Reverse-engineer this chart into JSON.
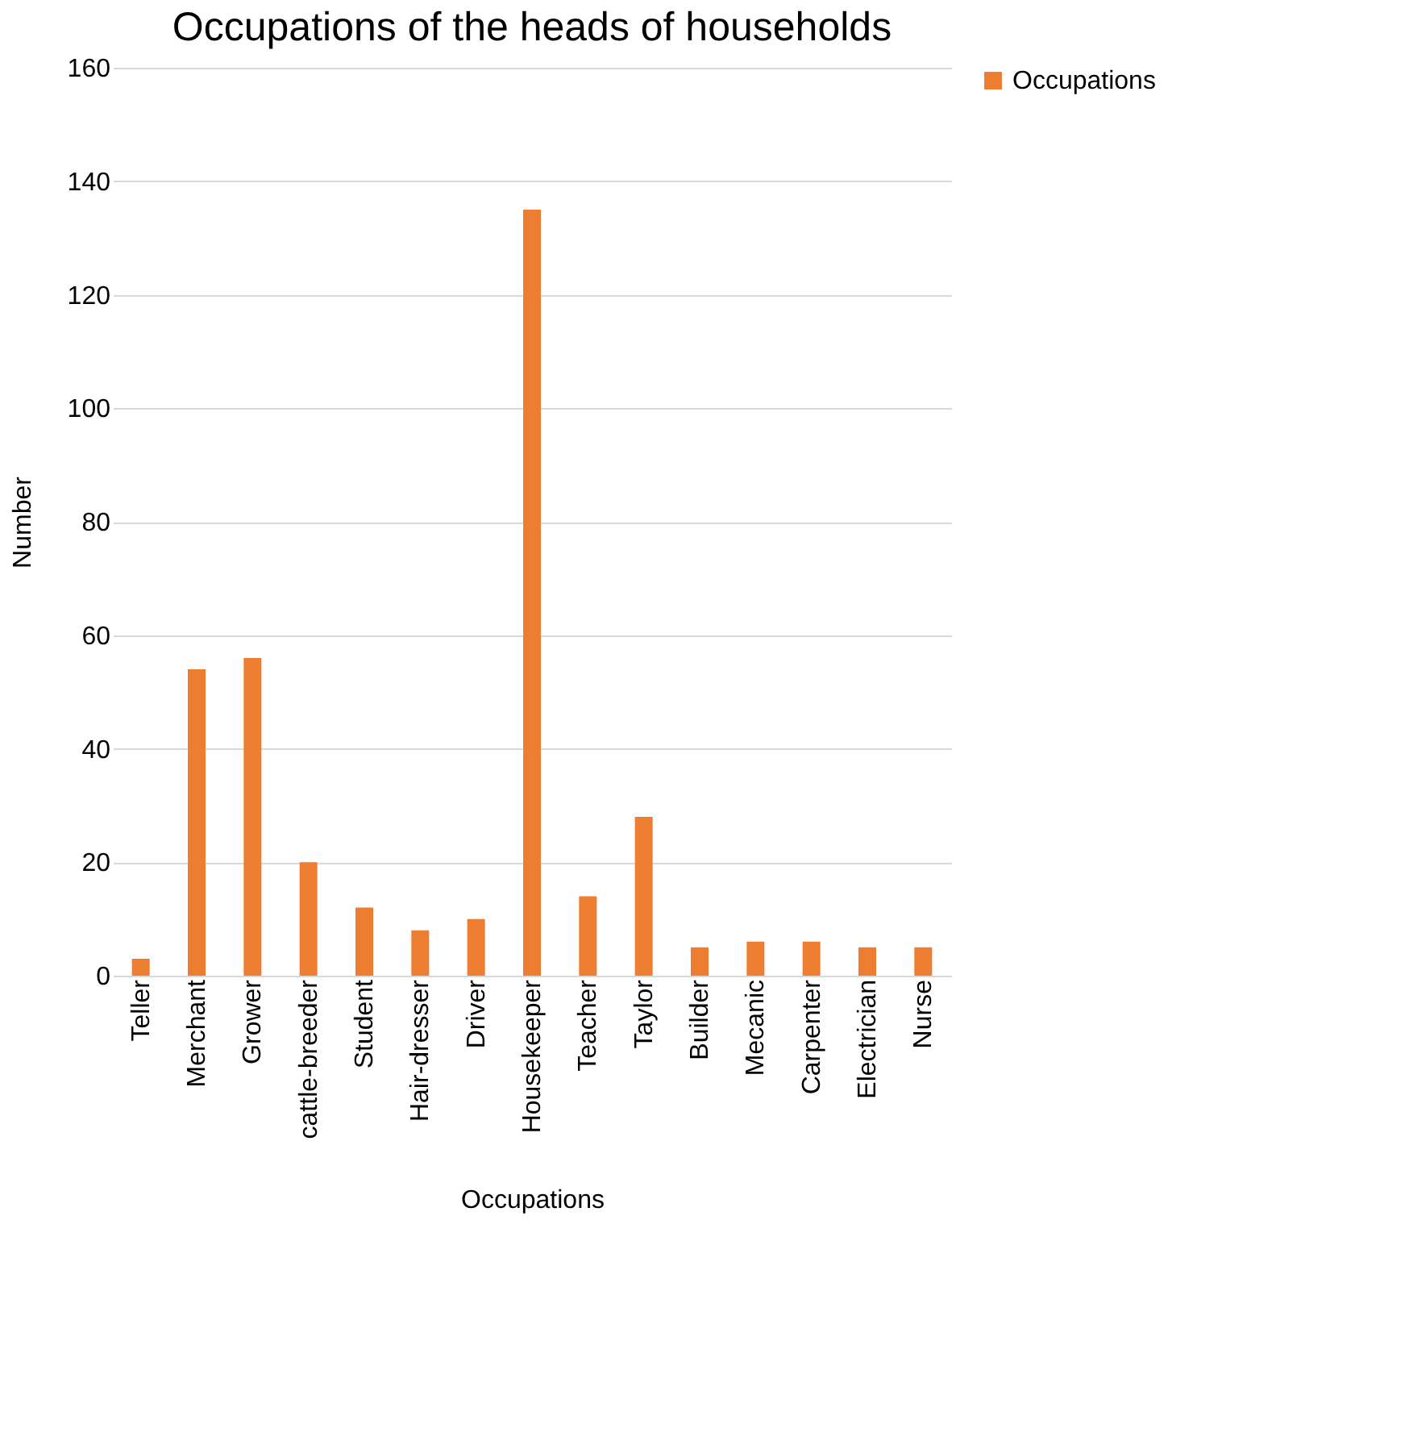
{
  "chart_data": {
    "type": "bar",
    "title": "Occupations of the heads of households",
    "xlabel": "Occupations",
    "ylabel": "Number",
    "categories": [
      "Teller",
      "Merchant",
      "Grower",
      "cattle-breeder",
      "Student",
      "Hair-dresser",
      "Driver",
      "Housekeeper",
      "Teacher",
      "Taylor",
      "Builder",
      "Mecanic",
      "Carpenter",
      "Electrician",
      "Nurse"
    ],
    "series": [
      {
        "name": "Occupations",
        "color": "#ed7d31",
        "values": [
          3,
          54,
          56,
          20,
          12,
          8,
          10,
          135,
          14,
          28,
          5,
          6,
          6,
          5,
          5
        ]
      }
    ],
    "ylim": [
      0,
      160
    ],
    "yticks": [
      0,
      20,
      40,
      60,
      80,
      100,
      120,
      140,
      160
    ],
    "grid": "y",
    "legend": "right"
  }
}
